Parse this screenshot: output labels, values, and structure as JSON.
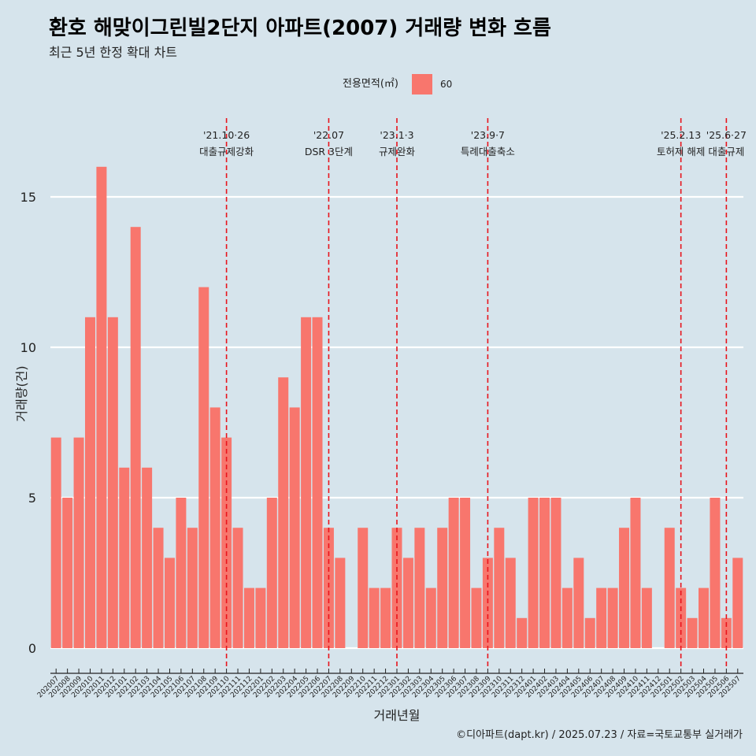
{
  "title": "환호 해맞이그린빌2단지 아파트(2007) 거래량 변화 흐름",
  "subtitle": "최근 5년 한정 확대 차트",
  "legend": {
    "title": "전용면적(㎡)",
    "label": "60",
    "color": "#f8766d"
  },
  "caption": "©디아파트(dapt.kr) / 2025.07.23 / 자료=국토교통부 실거래가",
  "chart_data": {
    "type": "bar",
    "xlabel": "거래년월",
    "ylabel": "거래량(건)",
    "ylim": [
      0,
      17.5
    ],
    "yticks": [
      0,
      5,
      10,
      15
    ],
    "grid": true,
    "legend_position": "top",
    "categories": [
      "202007",
      "202008",
      "202009",
      "202010",
      "202011",
      "202012",
      "202101",
      "202102",
      "202103",
      "202104",
      "202105",
      "202106",
      "202107",
      "202108",
      "202109",
      "202110",
      "202111",
      "202112",
      "202201",
      "202202",
      "202203",
      "202204",
      "202205",
      "202206",
      "202207",
      "202208",
      "202209",
      "202210",
      "202211",
      "202212",
      "202301",
      "202302",
      "202303",
      "202304",
      "202305",
      "202306",
      "202307",
      "202308",
      "202309",
      "202310",
      "202311",
      "202312",
      "202401",
      "202402",
      "202403",
      "202404",
      "202405",
      "202406",
      "202407",
      "202408",
      "202409",
      "202410",
      "202411",
      "202412",
      "202501",
      "202502",
      "202503",
      "202504",
      "202505",
      "202506",
      "202507"
    ],
    "series": [
      {
        "name": "60",
        "color": "#f8766d",
        "values": [
          7,
          5,
          7,
          11,
          16,
          11,
          6,
          14,
          6,
          4,
          3,
          5,
          4,
          12,
          8,
          7,
          4,
          2,
          2,
          5,
          9,
          8,
          11,
          11,
          4,
          3,
          0,
          4,
          2,
          2,
          4,
          3,
          4,
          2,
          4,
          5,
          5,
          2,
          3,
          4,
          3,
          1,
          5,
          5,
          5,
          2,
          3,
          1,
          2,
          2,
          4,
          5,
          2,
          0,
          4,
          2,
          1,
          2,
          5,
          1,
          3
        ]
      }
    ],
    "annotations": [
      {
        "x": "202110",
        "date": "'21.10·26",
        "label": "대출규제강화"
      },
      {
        "x": "202207",
        "date": "'22.07",
        "label": "DSR 3단계"
      },
      {
        "x": "202301",
        "date": "'23.1·3",
        "label": "규제완화"
      },
      {
        "x": "202309",
        "date": "'23.9·7",
        "label": "특례대출축소"
      },
      {
        "x": "202502",
        "date": "'25.2.13",
        "label": "토허제 해제"
      },
      {
        "x": "202506",
        "date": "'25.6·27",
        "label": "대출규제"
      }
    ]
  }
}
